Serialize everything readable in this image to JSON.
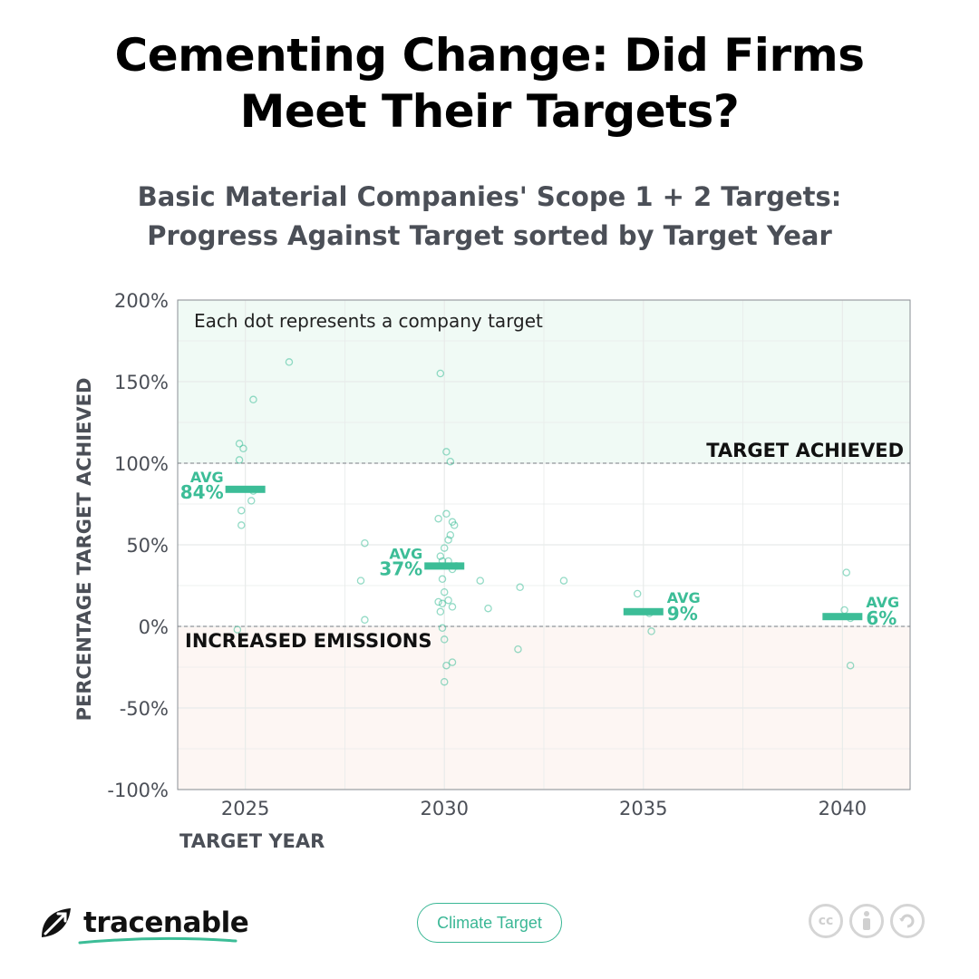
{
  "header": {
    "title_line1": "Cementing Change: Did Firms",
    "title_line2": "Meet Their Targets?",
    "subtitle_line1": "Basic Material Companies' Scope 1 + 2 Targets:",
    "subtitle_line2": "Progress Against Target sorted by Target Year"
  },
  "chart_data": {
    "type": "scatter",
    "ylabel": "PERCENTAGE TARGET ACHIEVED",
    "xlabel": "TARGET YEAR",
    "xlim": [
      2023.3,
      2041.7
    ],
    "ylim": [
      -100,
      200
    ],
    "x_ticks": [
      2025,
      2030,
      2035,
      2040
    ],
    "x_tick_labels": [
      "2025",
      "2030",
      "2035",
      "2040"
    ],
    "y_ticks": [
      -100,
      -50,
      0,
      50,
      100,
      150,
      200
    ],
    "y_tick_labels": [
      "-100%",
      "-50%",
      "0%",
      "50%",
      "100%",
      "150%",
      "200%"
    ],
    "grid": true,
    "note": "Each dot represents a company target",
    "reference_lines": [
      {
        "y": 100,
        "label": "TARGET ACHIEVED"
      },
      {
        "y": 0,
        "label": "INCREASED EMISSIONS"
      }
    ],
    "shaded_regions": [
      {
        "from": 100,
        "to": 200,
        "color": "#f0faf5"
      },
      {
        "from": -100,
        "to": 0,
        "color": "#fdf6f3"
      }
    ],
    "point_color": "#3cbd97",
    "averages": [
      {
        "x": 2025,
        "value": 84,
        "label": "AVG",
        "value_label": "84%"
      },
      {
        "x": 2030,
        "value": 37,
        "label": "AVG",
        "value_label": "37%"
      },
      {
        "x": 2035,
        "value": 9,
        "label": "AVG",
        "value_label": "9%"
      },
      {
        "x": 2040,
        "value": 6,
        "label": "AVG",
        "value_label": "6%"
      }
    ],
    "points": [
      {
        "x": 2024.85,
        "y": 112
      },
      {
        "x": 2024.95,
        "y": 109
      },
      {
        "x": 2024.85,
        "y": 102
      },
      {
        "x": 2025.2,
        "y": 139
      },
      {
        "x": 2026.1,
        "y": 162
      },
      {
        "x": 2025.2,
        "y": 83
      },
      {
        "x": 2025.15,
        "y": 77
      },
      {
        "x": 2024.9,
        "y": 71
      },
      {
        "x": 2024.9,
        "y": 62
      },
      {
        "x": 2024.8,
        "y": -2
      },
      {
        "x": 2028.0,
        "y": 51
      },
      {
        "x": 2027.9,
        "y": 28
      },
      {
        "x": 2028.0,
        "y": 4
      },
      {
        "x": 2029.9,
        "y": 155
      },
      {
        "x": 2030.05,
        "y": 107
      },
      {
        "x": 2030.15,
        "y": 101
      },
      {
        "x": 2030.05,
        "y": 69
      },
      {
        "x": 2029.85,
        "y": 66
      },
      {
        "x": 2030.2,
        "y": 64
      },
      {
        "x": 2030.25,
        "y": 62
      },
      {
        "x": 2030.15,
        "y": 56
      },
      {
        "x": 2030.1,
        "y": 53
      },
      {
        "x": 2030.0,
        "y": 48
      },
      {
        "x": 2029.9,
        "y": 43
      },
      {
        "x": 2029.95,
        "y": 40
      },
      {
        "x": 2030.1,
        "y": 40
      },
      {
        "x": 2030.3,
        "y": 37
      },
      {
        "x": 2030.2,
        "y": 35
      },
      {
        "x": 2029.95,
        "y": 29
      },
      {
        "x": 2030.0,
        "y": 21
      },
      {
        "x": 2030.1,
        "y": 16
      },
      {
        "x": 2029.85,
        "y": 15
      },
      {
        "x": 2029.95,
        "y": 14
      },
      {
        "x": 2030.2,
        "y": 12
      },
      {
        "x": 2029.9,
        "y": 9
      },
      {
        "x": 2029.95,
        "y": -1
      },
      {
        "x": 2030.0,
        "y": -8
      },
      {
        "x": 2030.05,
        "y": -24
      },
      {
        "x": 2030.2,
        "y": -22
      },
      {
        "x": 2030.0,
        "y": -34
      },
      {
        "x": 2030.9,
        "y": 28
      },
      {
        "x": 2031.1,
        "y": 11
      },
      {
        "x": 2031.9,
        "y": 24
      },
      {
        "x": 2031.85,
        "y": -14
      },
      {
        "x": 2033.0,
        "y": 28
      },
      {
        "x": 2034.85,
        "y": 20
      },
      {
        "x": 2035.15,
        "y": 8
      },
      {
        "x": 2035.2,
        "y": -3
      },
      {
        "x": 2040.1,
        "y": 33
      },
      {
        "x": 2040.05,
        "y": 10
      },
      {
        "x": 2040.2,
        "y": 5
      },
      {
        "x": 2040.2,
        "y": -24
      }
    ]
  },
  "footer": {
    "brand": "tracenable",
    "tag": "Climate Target",
    "license_icons": [
      "cc-icon",
      "attribution-icon",
      "share-alike-icon"
    ],
    "cc_text": "cc"
  }
}
